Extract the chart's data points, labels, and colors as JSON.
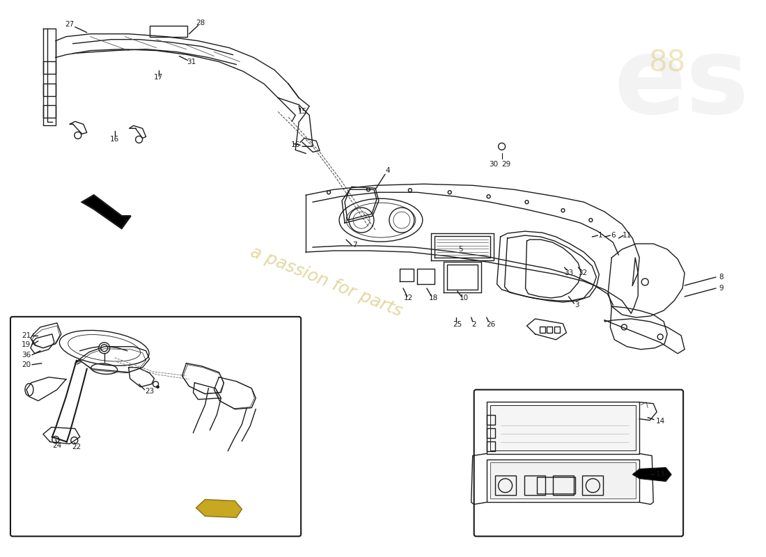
{
  "bg_color": "#ffffff",
  "line_color": "#1a1a1a",
  "lw": 1.0,
  "lw_thick": 1.5,
  "label_fontsize": 7.5,
  "watermark_text": "a passion for parts",
  "watermark_color": "#c8b040",
  "watermark_alpha": 0.5,
  "logo_color": "#d0d0d0",
  "logo_alpha": 0.25,
  "logo_color2": "#d4b84a",
  "figsize": [
    11.0,
    8.0
  ],
  "dpi": 100,
  "xlim": [
    0,
    1100
  ],
  "ylim": [
    0,
    800
  ]
}
